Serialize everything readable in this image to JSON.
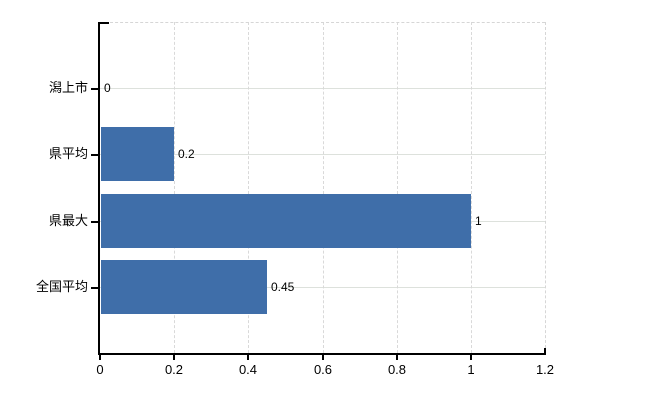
{
  "chart_data": {
    "type": "bar",
    "orientation": "horizontal",
    "title": "",
    "xlabel": "",
    "ylabel": "",
    "legend": "none",
    "grid": "on",
    "categories": [
      "潟上市",
      "県平均",
      "県最大",
      "全国平均"
    ],
    "values": [
      0,
      0.2,
      1,
      0.45
    ],
    "data_labels": [
      "0",
      "0.2",
      "1",
      "0.45"
    ],
    "x_ticks": [
      "0",
      "0.2",
      "0.4",
      "0.6",
      "0.8",
      "1",
      "1.2"
    ],
    "x_tick_values": [
      0,
      0.2,
      0.4,
      0.6,
      0.8,
      1,
      1.2
    ],
    "xlim": [
      0,
      1.2
    ]
  },
  "colors": {
    "bar": "#3f6ea9",
    "axis": "#000000",
    "horizontal_gridline": "#dde1dc",
    "vertical_gridline": "#d9d9d9",
    "plot_border": "#d6d6d6",
    "background": "#ffffff",
    "text": "#000000"
  }
}
